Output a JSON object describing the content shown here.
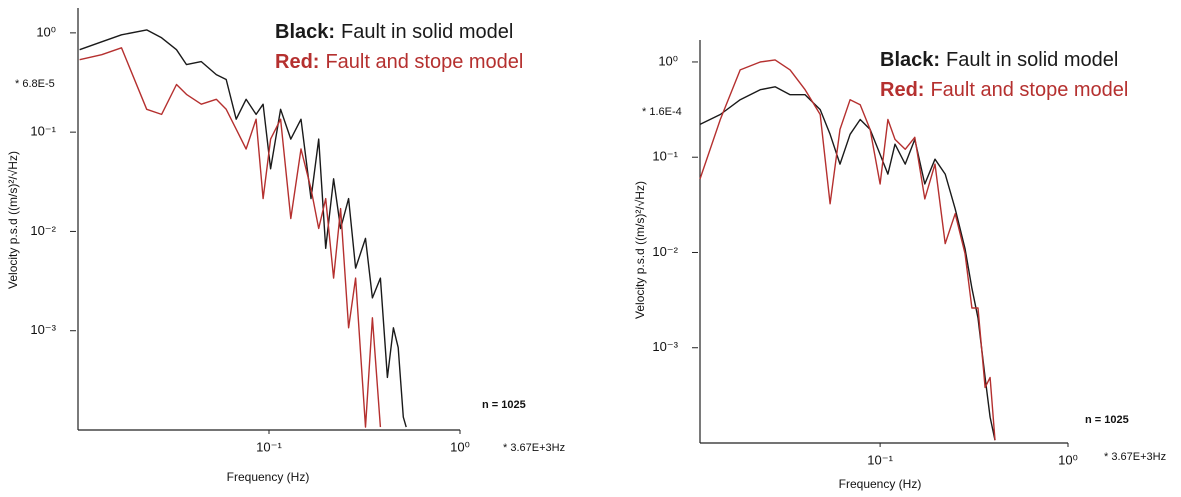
{
  "chart_data": [
    {
      "type": "line",
      "log_x": true,
      "log_y": true,
      "x_label": "Frequency  (Hz)",
      "y_label": "Velocity p.s.d  ((m/s)²/√Hz)",
      "xlim": [
        0.01,
        1
      ],
      "ylim": [
        0.0001,
        1.78
      ],
      "xticks": [
        {
          "value": 0.1,
          "label": "10⁻¹"
        },
        {
          "value": 1,
          "label": "10⁰"
        }
      ],
      "yticks": [
        {
          "value": 1,
          "label": "10⁰"
        },
        {
          "value": 0.1,
          "label": "10⁻¹"
        },
        {
          "value": 0.01,
          "label": "10⁻²"
        },
        {
          "value": 0.001,
          "label": "10⁻³"
        }
      ],
      "annotations": {
        "scale": "* 6.8E-5",
        "n": "n = 1025",
        "freq_scale": "* 3.67E+3Hz"
      },
      "x": [
        0.0102,
        0.0133,
        0.0169,
        0.0229,
        0.0274,
        0.0328,
        0.037,
        0.0442,
        0.053,
        0.0597,
        0.0673,
        0.0759,
        0.0856,
        0.0931,
        0.102,
        0.115,
        0.13,
        0.147,
        0.166,
        0.182,
        0.198,
        0.218,
        0.237,
        0.261,
        0.284,
        0.32,
        0.348,
        0.383,
        0.417,
        0.448,
        0.475,
        0.505,
        0.523
      ],
      "series": [
        {
          "key": "Black:",
          "name": "Fault in solid model",
          "color": "#1a1a1a",
          "values": [
            0.676,
            0.813,
            0.955,
            1.07,
            0.891,
            0.676,
            0.479,
            0.513,
            0.38,
            0.339,
            0.135,
            0.214,
            0.151,
            0.191,
            0.0427,
            0.17,
            0.0851,
            0.135,
            0.0214,
            0.0851,
            0.00676,
            0.0339,
            0.0107,
            0.0214,
            0.00427,
            0.00851,
            0.00214,
            0.00339,
            0.000339,
            0.00107,
            0.000676,
            0.000135,
            0.000107
          ]
        },
        {
          "key": "Red:",
          "name": "Fault and stope model",
          "color": "#b5302f",
          "values": [
            0.537,
            0.603,
            0.708,
            0.17,
            0.151,
            0.302,
            0.24,
            0.191,
            0.214,
            0.17,
            0.107,
            0.0676,
            0.135,
            0.0214,
            0.0851,
            0.135,
            0.0135,
            0.0676,
            0.0269,
            0.0107,
            0.0214,
            0.00339,
            0.017,
            0.00107,
            0.00339,
            0.000107,
            0.00135,
            0.000107,
            null,
            null,
            null,
            null,
            null
          ]
        }
      ]
    },
    {
      "type": "line",
      "log_x": true,
      "log_y": true,
      "x_label": "Frequency  (Hz)",
      "y_label": "Velocity p.s.d  ((m/s)²/√Hz)",
      "xlim": [
        0.011,
        1
      ],
      "ylim": [
        0.0001,
        1.7
      ],
      "xticks": [
        {
          "value": 0.1,
          "label": "10⁻¹"
        },
        {
          "value": 1,
          "label": "10⁰"
        }
      ],
      "yticks": [
        {
          "value": 1,
          "label": "10⁰"
        },
        {
          "value": 0.1,
          "label": "10⁻¹"
        },
        {
          "value": 0.01,
          "label": "10⁻²"
        },
        {
          "value": 0.001,
          "label": "10⁻³"
        }
      ],
      "annotations": {
        "scale": "* 1.6E-4",
        "n": "n = 1025",
        "freq_scale": "* 3.67E+3Hz"
      },
      "x": [
        0.011,
        0.0141,
        0.018,
        0.023,
        0.0276,
        0.0332,
        0.0399,
        0.048,
        0.0542,
        0.0612,
        0.0692,
        0.0783,
        0.0885,
        0.1,
        0.11,
        0.12,
        0.136,
        0.153,
        0.173,
        0.196,
        0.222,
        0.251,
        0.283,
        0.308,
        0.332,
        0.362,
        0.385,
        0.409
      ],
      "series": [
        {
          "key": "Black:",
          "name": "Fault in solid model",
          "color": "#1a1a1a",
          "values": [
            0.221,
            0.281,
            0.402,
            0.511,
            0.549,
            0.453,
            0.453,
            0.316,
            0.174,
            0.0846,
            0.174,
            0.249,
            0.196,
            0.107,
            0.0665,
            0.137,
            0.0846,
            0.154,
            0.0523,
            0.0953,
            0.0665,
            0.0287,
            0.011,
            0.00422,
            0.00205,
            0.000487,
            0.000187,
            0.000107
          ]
        },
        {
          "key": "Red:",
          "name": "Fault and stope model",
          "color": "#b5302f",
          "values": [
            0.059,
            0.249,
            0.826,
            1.0,
            1.05,
            0.826,
            0.511,
            0.281,
            0.0324,
            0.196,
            0.402,
            0.356,
            0.196,
            0.0523,
            0.249,
            0.154,
            0.121,
            0.162,
            0.0365,
            0.0846,
            0.0124,
            0.0255,
            0.00977,
            0.00261,
            0.00261,
            0.000383,
            0.000487,
            0.000107
          ]
        }
      ]
    }
  ]
}
